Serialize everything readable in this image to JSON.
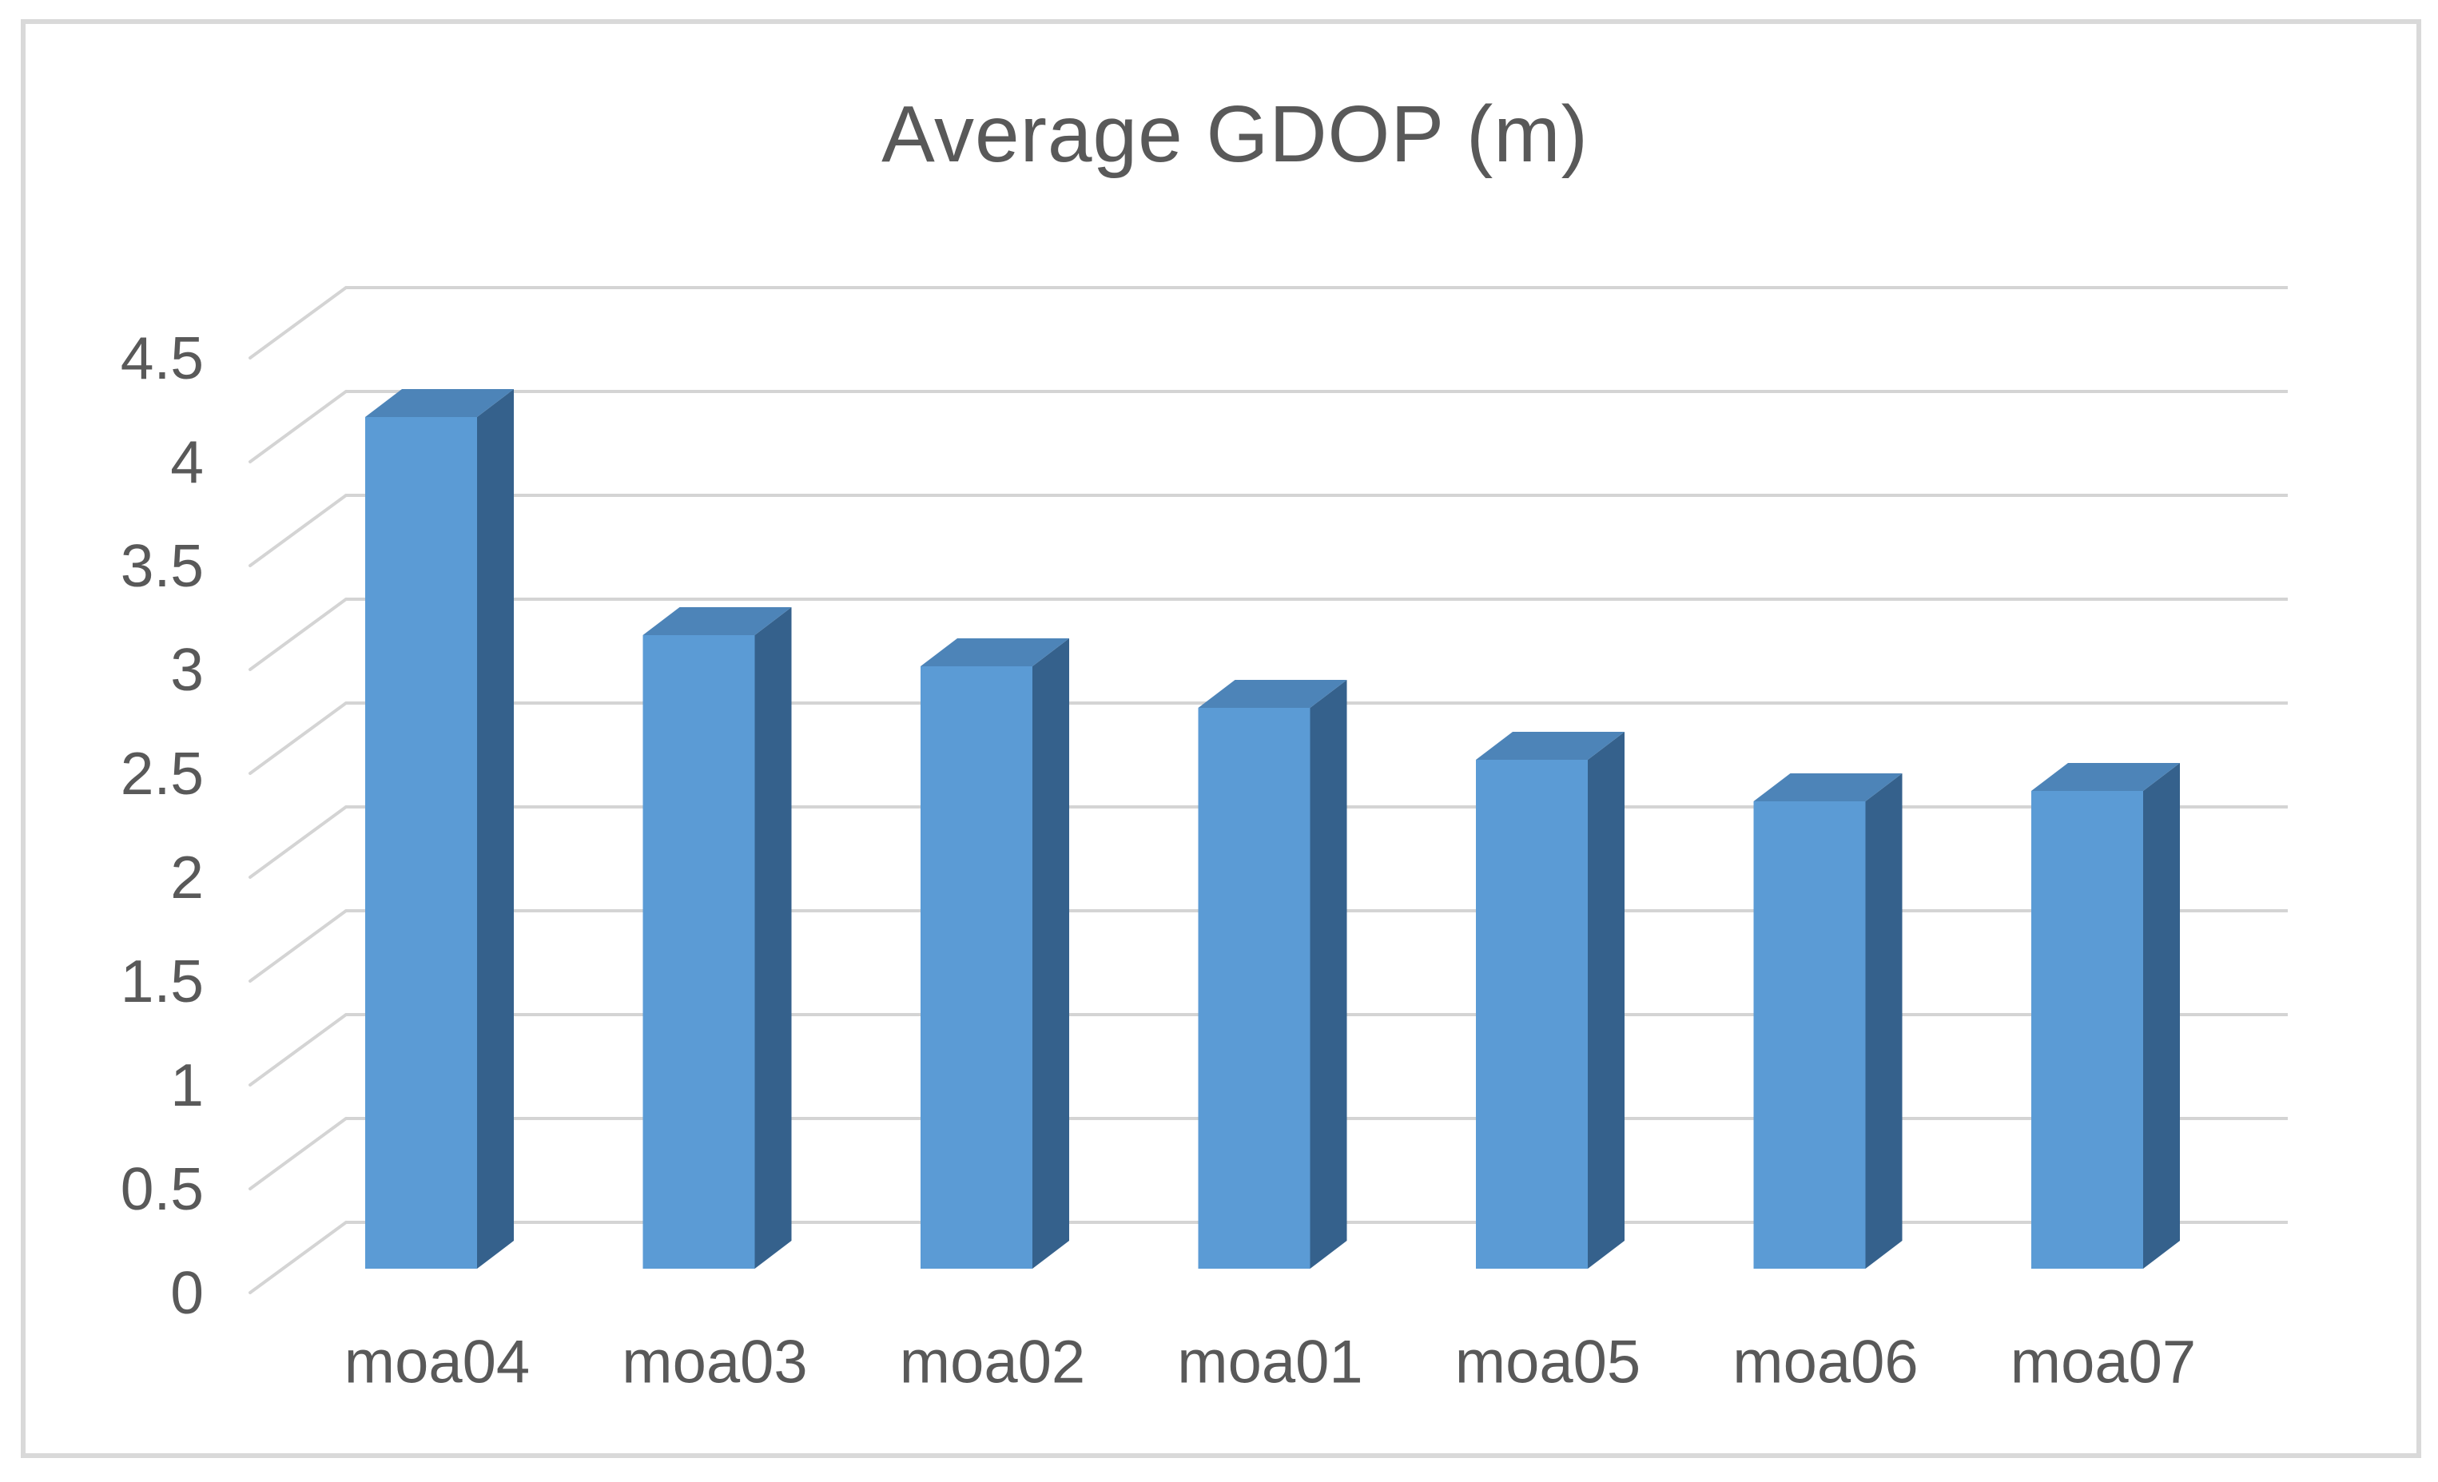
{
  "title": "Average GDOP (m)",
  "chart_data": {
    "type": "bar",
    "projection": "3d-column-oblique",
    "title": "Average GDOP (m)",
    "categories": [
      "moa04",
      "moa03",
      "moa02",
      "moa01",
      "moa05",
      "moa06",
      "moa07"
    ],
    "values": [
      4.1,
      3.05,
      2.9,
      2.7,
      2.45,
      2.25,
      2.3
    ],
    "series_name": "Average GDOP (m)",
    "xlabel": "",
    "ylabel": "",
    "ylim": [
      0,
      4.5
    ],
    "ytick_step": 0.5,
    "ytick_labels": [
      "0",
      "0.5",
      "1",
      "1.5",
      "2",
      "2.5",
      "3",
      "3.5",
      "4",
      "4.5"
    ],
    "grid": true,
    "legend": false,
    "colors": {
      "bar_front": "#5B9BD5",
      "bar_top": "#4D84B8",
      "bar_side": "#35618C",
      "gridline": "#D4D4D4",
      "text": "#595959",
      "frame_border": "#D9D9D9",
      "background": "#FFFFFF"
    }
  }
}
